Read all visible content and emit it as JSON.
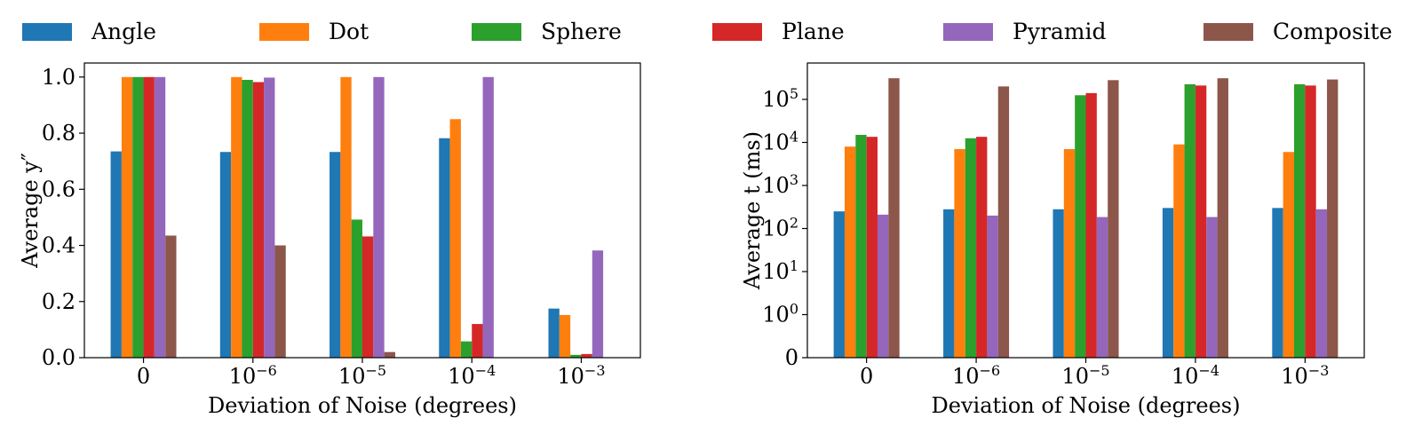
{
  "legend": [
    {
      "name": "Angle",
      "color": "#1f77b4"
    },
    {
      "name": "Dot",
      "color": "#ff7f0e"
    },
    {
      "name": "Sphere",
      "color": "#2ca02c"
    },
    {
      "name": "Plane",
      "color": "#d62728"
    },
    {
      "name": "Pyramid",
      "color": "#9467bd"
    },
    {
      "name": "Composite",
      "color": "#8c564b"
    }
  ],
  "chart_data": [
    {
      "type": "bar",
      "title": "",
      "xlabel": "Deviation of Noise (degrees)",
      "ylabel": "Average y″",
      "categories": [
        {
          "base": "0",
          "exp": ""
        },
        {
          "base": "10",
          "exp": "−6"
        },
        {
          "base": "10",
          "exp": "−5"
        },
        {
          "base": "10",
          "exp": "−4"
        },
        {
          "base": "10",
          "exp": "−3"
        }
      ],
      "yscale": "linear",
      "ylim": [
        0,
        1.05
      ],
      "yticks": [
        {
          "value": 0.0,
          "label": "0.0"
        },
        {
          "value": 0.2,
          "label": "0.2"
        },
        {
          "value": 0.4,
          "label": "0.4"
        },
        {
          "value": 0.6,
          "label": "0.6"
        },
        {
          "value": 0.8,
          "label": "0.8"
        },
        {
          "value": 1.0,
          "label": "1.0"
        }
      ],
      "series": [
        {
          "name": "Angle",
          "color": "#1f77b4",
          "values": [
            0.735,
            0.733,
            0.733,
            0.782,
            0.175
          ]
        },
        {
          "name": "Dot",
          "color": "#ff7f0e",
          "values": [
            1.0,
            1.0,
            1.0,
            0.85,
            0.152
          ]
        },
        {
          "name": "Sphere",
          "color": "#2ca02c",
          "values": [
            1.0,
            0.99,
            0.492,
            0.058,
            0.01
          ]
        },
        {
          "name": "Plane",
          "color": "#d62728",
          "values": [
            1.0,
            0.982,
            0.432,
            0.12,
            0.013
          ]
        },
        {
          "name": "Pyramid",
          "color": "#9467bd",
          "values": [
            1.0,
            0.998,
            1.0,
            1.0,
            0.382
          ]
        },
        {
          "name": "Composite",
          "color": "#8c564b",
          "values": [
            0.435,
            0.4,
            0.02,
            0.0,
            0.0
          ]
        }
      ],
      "grid": false
    },
    {
      "type": "bar",
      "title": "",
      "xlabel": "Deviation of Noise (degrees)",
      "ylabel": "Average t (ms)",
      "categories": [
        {
          "base": "0",
          "exp": ""
        },
        {
          "base": "10",
          "exp": "−6"
        },
        {
          "base": "10",
          "exp": "−5"
        },
        {
          "base": "10",
          "exp": "−4"
        },
        {
          "base": "10",
          "exp": "−3"
        }
      ],
      "yscale": "symlog",
      "ylim": [
        0,
        700000
      ],
      "yticks": [
        {
          "value": 0,
          "base": "0",
          "exp": ""
        },
        {
          "value": 1,
          "base": "10",
          "exp": "0"
        },
        {
          "value": 10,
          "base": "10",
          "exp": "1"
        },
        {
          "value": 100,
          "base": "10",
          "exp": "2"
        },
        {
          "value": 1000,
          "base": "10",
          "exp": "3"
        },
        {
          "value": 10000,
          "base": "10",
          "exp": "4"
        },
        {
          "value": 100000,
          "base": "10",
          "exp": "5"
        }
      ],
      "series": [
        {
          "name": "Angle",
          "color": "#1f77b4",
          "values": [
            250,
            280,
            280,
            300,
            300
          ]
        },
        {
          "name": "Dot",
          "color": "#ff7f0e",
          "values": [
            8000,
            7000,
            7000,
            9000,
            6000
          ]
        },
        {
          "name": "Sphere",
          "color": "#2ca02c",
          "values": [
            15000,
            12500,
            125000,
            225000,
            225000
          ]
        },
        {
          "name": "Plane",
          "color": "#d62728",
          "values": [
            13500,
            13500,
            140000,
            210000,
            210000
          ]
        },
        {
          "name": "Pyramid",
          "color": "#9467bd",
          "values": [
            210,
            200,
            185,
            185,
            280
          ]
        },
        {
          "name": "Composite",
          "color": "#8c564b",
          "values": [
            310000,
            200000,
            280000,
            310000,
            290000
          ]
        }
      ],
      "grid": false
    }
  ]
}
